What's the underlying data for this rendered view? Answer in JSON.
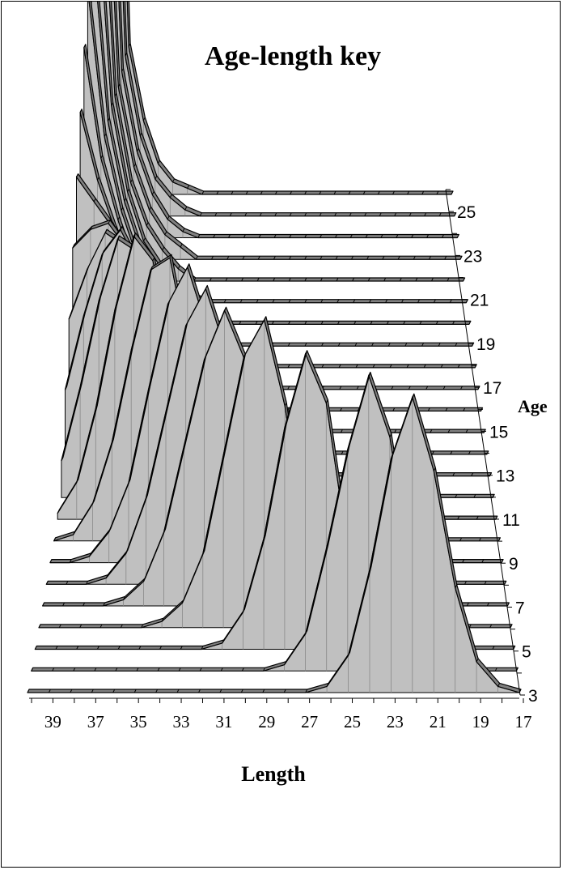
{
  "chart_data": {
    "type": "area",
    "title": "Age-length key",
    "xlabel": "Length",
    "zlabel": "Age",
    "x": [
      40,
      39,
      38,
      37,
      36,
      35,
      34,
      33,
      32,
      31,
      30,
      29,
      28,
      27,
      26,
      25,
      24,
      23,
      22,
      21,
      20,
      19,
      18,
      17
    ],
    "x_tick_labels": [
      "39",
      "37",
      "35",
      "33",
      "31",
      "29",
      "27",
      "25",
      "23",
      "21",
      "19",
      "17"
    ],
    "z_tick_labels": [
      "25",
      "23",
      "21",
      "19",
      "17",
      "15",
      "13",
      "11",
      "9",
      "7",
      "5",
      "3"
    ],
    "ylim": [
      0,
      1
    ],
    "series": [
      {
        "age": 3,
        "values": [
          0,
          0,
          0,
          0,
          0,
          0,
          0,
          0,
          0,
          0,
          0,
          0,
          0,
          0,
          0.01,
          0.06,
          0.2,
          0.38,
          0.48,
          0.36,
          0.17,
          0.05,
          0.01,
          0
        ]
      },
      {
        "age": 4,
        "values": [
          0,
          0,
          0,
          0,
          0,
          0,
          0,
          0,
          0,
          0,
          0,
          0,
          0.01,
          0.06,
          0.2,
          0.36,
          0.48,
          0.38,
          0.16,
          0.03,
          0,
          0,
          0,
          0
        ]
      },
      {
        "age": 5,
        "values": [
          0,
          0,
          0,
          0,
          0,
          0,
          0,
          0,
          0,
          0.01,
          0.06,
          0.18,
          0.36,
          0.48,
          0.4,
          0.17,
          0.03,
          0,
          0,
          0,
          0,
          0,
          0,
          0
        ]
      },
      {
        "age": 6,
        "values": [
          0,
          0,
          0,
          0,
          0,
          0,
          0.01,
          0.04,
          0.12,
          0.28,
          0.44,
          0.5,
          0.36,
          0.14,
          0.03,
          0,
          0,
          0,
          0,
          0,
          0,
          0,
          0,
          0
        ]
      },
      {
        "age": 7,
        "values": [
          0,
          0,
          0,
          0,
          0.01,
          0.04,
          0.12,
          0.26,
          0.4,
          0.48,
          0.4,
          0.2,
          0.06,
          0.01,
          0,
          0,
          0,
          0,
          0,
          0,
          0,
          0,
          0,
          0
        ]
      },
      {
        "age": 8,
        "values": [
          0,
          0,
          0,
          0.01,
          0.05,
          0.14,
          0.28,
          0.42,
          0.48,
          0.38,
          0.18,
          0.05,
          0.01,
          0,
          0,
          0,
          0,
          0,
          0,
          0,
          0,
          0,
          0,
          0
        ]
      },
      {
        "age": 9,
        "values": [
          0,
          0,
          0.01,
          0.05,
          0.13,
          0.28,
          0.42,
          0.48,
          0.38,
          0.2,
          0.06,
          0.01,
          0,
          0,
          0,
          0,
          0,
          0,
          0,
          0,
          0,
          0,
          0,
          0
        ]
      },
      {
        "age": 10,
        "values": [
          0,
          0.01,
          0.06,
          0.16,
          0.31,
          0.44,
          0.46,
          0.3,
          0.12,
          0.03,
          0,
          0,
          0,
          0,
          0,
          0,
          0,
          0,
          0,
          0,
          0,
          0,
          0,
          0
        ]
      },
      {
        "age": 11,
        "values": [
          0.01,
          0.06,
          0.18,
          0.34,
          0.46,
          0.42,
          0.28,
          0.12,
          0.04,
          0.01,
          0,
          0,
          0,
          0,
          0,
          0,
          0,
          0,
          0,
          0,
          0,
          0,
          0,
          0
        ]
      },
      {
        "age": 12,
        "values": [
          0.06,
          0.18,
          0.32,
          0.42,
          0.4,
          0.3,
          0.16,
          0.06,
          0.02,
          0,
          0,
          0,
          0,
          0,
          0,
          0,
          0,
          0,
          0,
          0,
          0,
          0,
          0,
          0
        ]
      },
      {
        "age": 13,
        "values": [
          0.14,
          0.26,
          0.36,
          0.4,
          0.34,
          0.22,
          0.1,
          0.03,
          0.01,
          0,
          0,
          0,
          0,
          0,
          0,
          0,
          0,
          0,
          0,
          0,
          0,
          0,
          0,
          0
        ]
      },
      {
        "age": 14,
        "values": [
          0.22,
          0.3,
          0.36,
          0.34,
          0.26,
          0.16,
          0.07,
          0.02,
          0.01,
          0,
          0,
          0,
          0,
          0,
          0,
          0,
          0,
          0,
          0,
          0,
          0,
          0,
          0,
          0
        ]
      },
      {
        "age": 15,
        "values": [
          0.3,
          0.33,
          0.34,
          0.3,
          0.2,
          0.11,
          0.05,
          0.02,
          0,
          0,
          0,
          0,
          0,
          0,
          0,
          0,
          0,
          0,
          0,
          0,
          0,
          0,
          0,
          0
        ]
      },
      {
        "age": 16,
        "values": [
          0.38,
          0.34,
          0.3,
          0.24,
          0.15,
          0.08,
          0.03,
          0.01,
          0,
          0,
          0,
          0,
          0,
          0,
          0,
          0,
          0,
          0,
          0,
          0,
          0,
          0,
          0,
          0
        ]
      },
      {
        "age": 17,
        "values": [
          0.45,
          0.34,
          0.26,
          0.19,
          0.12,
          0.06,
          0.02,
          0.01,
          0,
          0,
          0,
          0,
          0,
          0,
          0,
          0,
          0,
          0,
          0,
          0,
          0,
          0,
          0,
          0
        ]
      },
      {
        "age": 18,
        "values": [
          0.52,
          0.34,
          0.24,
          0.16,
          0.1,
          0.05,
          0.02,
          0,
          0,
          0,
          0,
          0,
          0,
          0,
          0,
          0,
          0,
          0,
          0,
          0,
          0,
          0,
          0,
          0
        ]
      },
      {
        "age": 19,
        "values": [
          0.58,
          0.34,
          0.22,
          0.14,
          0.08,
          0.04,
          0.01,
          0,
          0,
          0,
          0,
          0,
          0,
          0,
          0,
          0,
          0,
          0,
          0,
          0,
          0,
          0,
          0,
          0
        ]
      },
      {
        "age": 20,
        "values": [
          0.64,
          0.33,
          0.2,
          0.12,
          0.07,
          0.03,
          0.01,
          0,
          0,
          0,
          0,
          0,
          0,
          0,
          0,
          0,
          0,
          0,
          0,
          0,
          0,
          0,
          0,
          0
        ]
      },
      {
        "age": 21,
        "values": [
          0.7,
          0.32,
          0.18,
          0.1,
          0.06,
          0.02,
          0.01,
          0,
          0,
          0,
          0,
          0,
          0,
          0,
          0,
          0,
          0,
          0,
          0,
          0,
          0,
          0,
          0,
          0
        ]
      },
      {
        "age": 22,
        "values": [
          0.76,
          0.3,
          0.16,
          0.09,
          0.05,
          0.02,
          0,
          0,
          0,
          0,
          0,
          0,
          0,
          0,
          0,
          0,
          0,
          0,
          0,
          0,
          0,
          0,
          0,
          0
        ]
      },
      {
        "age": 23,
        "values": [
          0.82,
          0.28,
          0.15,
          0.08,
          0.04,
          0.02,
          0,
          0,
          0,
          0,
          0,
          0,
          0,
          0,
          0,
          0,
          0,
          0,
          0,
          0,
          0,
          0,
          0,
          0
        ]
      },
      {
        "age": 24,
        "values": [
          0.88,
          0.27,
          0.14,
          0.07,
          0.03,
          0.01,
          0,
          0,
          0,
          0,
          0,
          0,
          0,
          0,
          0,
          0,
          0,
          0,
          0,
          0,
          0,
          0,
          0,
          0
        ]
      },
      {
        "age": 25,
        "values": [
          0.94,
          0.26,
          0.13,
          0.06,
          0.03,
          0.01,
          0,
          0,
          0,
          0,
          0,
          0,
          0,
          0,
          0,
          0,
          0,
          0,
          0,
          0,
          0,
          0,
          0,
          0
        ]
      },
      {
        "age": 26,
        "values": [
          1.0,
          0.24,
          0.12,
          0.05,
          0.02,
          0.01,
          0,
          0,
          0,
          0,
          0,
          0,
          0,
          0,
          0,
          0,
          0,
          0,
          0,
          0,
          0,
          0,
          0,
          0
        ]
      }
    ],
    "grid": false,
    "colors": {
      "fill": "#c0c0c0",
      "top": "#808080",
      "stroke": "#000000",
      "background": "#ffffff"
    }
  }
}
